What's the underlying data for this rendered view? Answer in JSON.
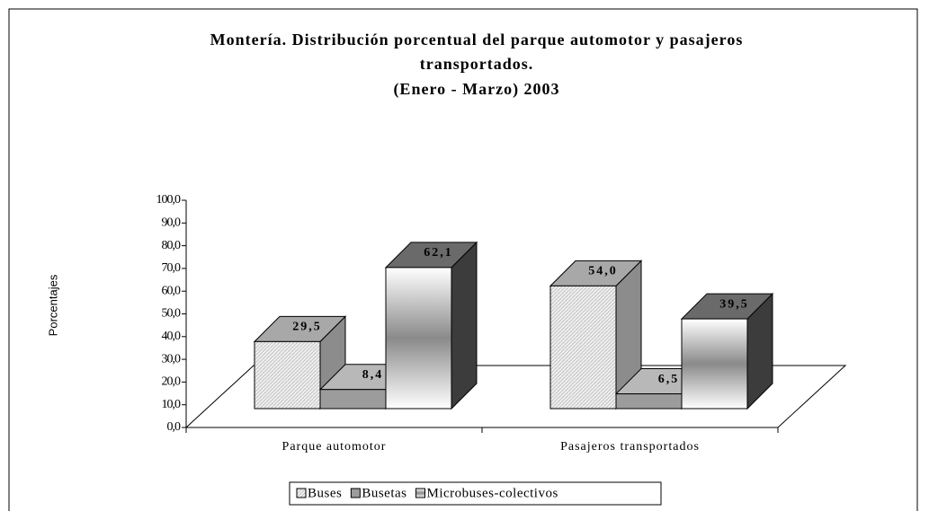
{
  "chart_data": {
    "type": "bar3d",
    "title": "Montería. Distribución porcentual del parque automotor y  pasajeros transportados.",
    "subtitle": "(Enero - Marzo) 2003",
    "ylabel": "Porcentajes",
    "categories": [
      "Parque automotor",
      "Pasajeros transportados"
    ],
    "series": [
      {
        "name": "Buses",
        "color": "#e4e4e4",
        "values": [
          29.5,
          54.0
        ],
        "value_labels": [
          "29,5",
          "54,0"
        ]
      },
      {
        "name": "Busetas",
        "color": "#9c9c9c",
        "values": [
          8.4,
          6.5
        ],
        "value_labels": [
          "8,4",
          "6,5"
        ]
      },
      {
        "name": "Microbuses-colectivos",
        "color": "#707070",
        "values": [
          62.1,
          39.5
        ],
        "value_labels": [
          "62,1",
          "39,5"
        ]
      }
    ],
    "ylim": [
      0,
      100
    ],
    "yticks": [
      {
        "value": 0,
        "label": "0,0"
      },
      {
        "value": 10,
        "label": "10,0"
      },
      {
        "value": 20,
        "label": "20,0"
      },
      {
        "value": 30,
        "label": "30,0"
      },
      {
        "value": 40,
        "label": "40,0"
      },
      {
        "value": 50,
        "label": "50,0"
      },
      {
        "value": 60,
        "label": "60,0"
      },
      {
        "value": 70,
        "label": "70,0"
      },
      {
        "value": 80,
        "label": "80,0"
      },
      {
        "value": 90,
        "label": "90,0"
      },
      {
        "value": 100,
        "label": "100,0"
      }
    ],
    "legend": "bottom"
  }
}
